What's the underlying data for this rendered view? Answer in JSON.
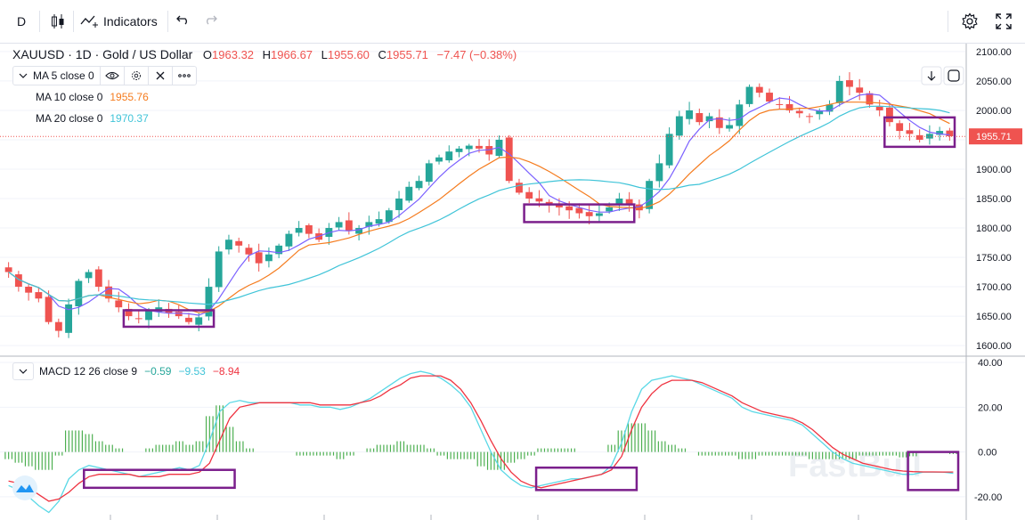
{
  "toolbar": {
    "interval": "D",
    "chart_type_icon": "candles-icon",
    "indicators_label": "Indicators",
    "undo_icon": "undo-icon",
    "redo_icon": "redo-icon",
    "settings_icon": "gear-icon",
    "fullscreen_icon": "fullscreen-icon"
  },
  "legend": {
    "symbol": "XAUUSD · 1D · Gold / US Dollar",
    "o_label": "O",
    "o": "1963.32",
    "h_label": "H",
    "h": "1966.67",
    "l_label": "L",
    "l": "1955.60",
    "c_label": "C",
    "c": "1955.71",
    "change": "−7.47 (−0.38%)",
    "ma5": "MA 5 close 0",
    "ma10": "MA 10 close 0",
    "ma10_value": "1955.76",
    "ma20": "MA 20 close 0",
    "ma20_value": "1970.37",
    "macd": "MACD 12 26 close 9",
    "macd_hist": "−0.59",
    "macd_line": "−9.53",
    "macd_signal": "−8.94"
  },
  "colors": {
    "up": "#26a69a",
    "down": "#ef5350",
    "ma5": "#7b61ff",
    "ma10": "#f57c1f",
    "ma20": "#40c4d8",
    "macd": "#5ad8e6",
    "signal": "#ef3340",
    "hist": "#4caf50",
    "highlight": "#7b1f8c"
  },
  "watermark": "FastBull",
  "chart_data": [
    {
      "type": "candlestick",
      "title": "XAUUSD · 1D · Gold / US Dollar",
      "y_ticks": [
        1600,
        1650,
        1700,
        1750,
        1800,
        1850,
        1900,
        1950,
        2000,
        2050,
        2100
      ],
      "ylim": [
        1585,
        2115
      ],
      "last_price": 1955.71,
      "close_path": [
        1725,
        1700,
        1690,
        1680,
        1640,
        1625,
        1670,
        1710,
        1725,
        1700,
        1680,
        1665,
        1650,
        1645,
        1660,
        1665,
        1655,
        1650,
        1640,
        1648,
        1700,
        1760,
        1780,
        1770,
        1755,
        1740,
        1755,
        1770,
        1790,
        1800,
        1790,
        1780,
        1800,
        1810,
        1795,
        1800,
        1810,
        1815,
        1830,
        1850,
        1870,
        1880,
        1910,
        1920,
        1930,
        1935,
        1940,
        1935,
        1925,
        1950,
        1880,
        1860,
        1850,
        1845,
        1840,
        1835,
        1830,
        1825,
        1820,
        1825,
        1835,
        1850,
        1840,
        1830,
        1880,
        1910,
        1960,
        1990,
        2000,
        1980,
        1990,
        1970,
        1975,
        2010,
        2040,
        2030,
        2015,
        2010,
        2000,
        1995,
        1990,
        2000,
        2010,
        2050,
        2040,
        2030,
        2010,
        2000,
        1980,
        1965,
        1960,
        1950,
        1960,
        1965,
        1956
      ],
      "ma_series": [
        {
          "name": "MA 5"
        },
        {
          "name": "MA 10"
        },
        {
          "name": "MA 20"
        }
      ],
      "highlight_ranges": [
        {
          "from": 12,
          "to": 20,
          "low": 1632,
          "high": 1660
        },
        {
          "from": 52,
          "to": 62,
          "low": 1810,
          "high": 1840
        },
        {
          "from": 88,
          "to": 94,
          "low": 1938,
          "high": 1988
        }
      ]
    },
    {
      "type": "line",
      "title": "MACD 12 26 close 9",
      "y_ticks": [
        -20,
        0,
        20,
        40
      ],
      "ylim": [
        -28,
        42
      ],
      "series": [
        {
          "name": "MACD",
          "values": [
            -15,
            -17,
            -20,
            -24,
            -27,
            -22,
            -12,
            -8,
            -6,
            -7,
            -8,
            -9,
            -10,
            -11,
            -10,
            -9,
            -8,
            -7,
            -8,
            -6,
            5,
            18,
            22,
            23,
            22,
            22,
            22,
            22,
            22,
            21,
            21,
            20,
            20,
            19,
            20,
            22,
            24,
            27,
            30,
            33,
            35,
            36,
            35,
            33,
            30,
            26,
            20,
            10,
            0,
            -8,
            -12,
            -15,
            -16,
            -15,
            -14,
            -13,
            -12,
            -12,
            -11,
            -10,
            -6,
            4,
            18,
            28,
            32,
            33,
            34,
            33,
            32,
            30,
            28,
            26,
            24,
            20,
            18,
            17,
            16,
            15,
            14,
            12,
            8,
            4,
            0,
            -3,
            -5,
            -6,
            -7,
            -8,
            -9,
            -10,
            -10,
            -9,
            -9,
            -9,
            -9.53
          ]
        },
        {
          "name": "Signal",
          "values": [
            -13,
            -14,
            -16,
            -19,
            -22,
            -21,
            -18,
            -14,
            -11,
            -10,
            -10,
            -10,
            -10,
            -11,
            -11,
            -11,
            -10,
            -10,
            -10,
            -9,
            -5,
            5,
            15,
            20,
            21,
            22,
            22,
            22,
            22,
            22,
            22,
            21,
            21,
            21,
            21,
            22,
            23,
            25,
            28,
            30,
            33,
            34,
            34,
            34,
            32,
            28,
            22,
            14,
            5,
            -3,
            -9,
            -13,
            -15,
            -16,
            -15,
            -14,
            -13,
            -12,
            -11,
            -10,
            -8,
            -2,
            10,
            20,
            26,
            30,
            32,
            32,
            32,
            31,
            29,
            27,
            25,
            22,
            20,
            18,
            17,
            16,
            15,
            13,
            10,
            6,
            2,
            -1,
            -3,
            -5,
            -6,
            -7,
            -8,
            -8.5,
            -8.8,
            -8.9,
            -8.9,
            -8.94,
            -8.94
          ]
        }
      ],
      "highlight_ranges": [
        {
          "from": 8,
          "to": 22,
          "low": -16,
          "high": -8
        },
        {
          "from": 53,
          "to": 62,
          "low": -17,
          "high": -7
        },
        {
          "from": 90,
          "to": 94,
          "low": -17,
          "high": 0
        }
      ]
    }
  ],
  "x_axis_labels": []
}
